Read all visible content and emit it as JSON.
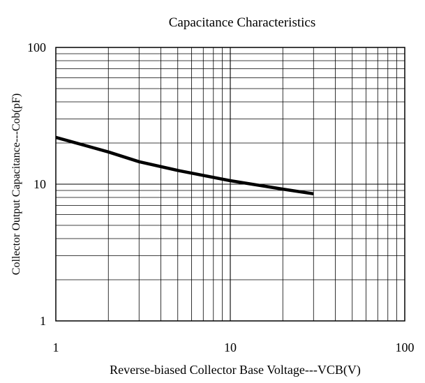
{
  "chart_data": {
    "type": "line",
    "title": "Capacitance Characteristics",
    "xlabel": "Reverse-biased Collector Base Voltage---VCB(V)",
    "ylabel": "Collector Output Capacitance---Cob(pF)",
    "x_scale": "log",
    "y_scale": "log",
    "xlim": [
      1,
      100
    ],
    "ylim": [
      1,
      100
    ],
    "x_tick_labels": [
      "1",
      "10",
      "100"
    ],
    "y_tick_labels": [
      "1",
      "10",
      "100"
    ],
    "grid": true,
    "series": [
      {
        "x": [
          1,
          2,
          3,
          5,
          10,
          20,
          30
        ],
        "y": [
          22,
          17.2,
          14.6,
          12.6,
          10.6,
          9.2,
          8.5
        ]
      }
    ],
    "colors": {
      "line": "#000000",
      "grid": "#000000",
      "background": "#ffffff"
    }
  }
}
